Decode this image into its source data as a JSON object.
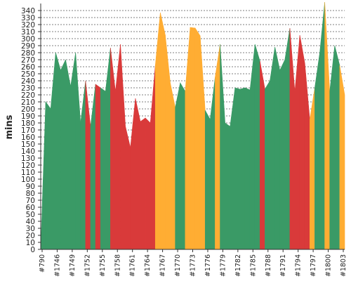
{
  "chart_data": {
    "type": "area",
    "title": "",
    "xlabel": "",
    "ylabel": "mins",
    "ylim": [
      0,
      350
    ],
    "yticks": [
      0,
      10,
      20,
      30,
      40,
      50,
      60,
      70,
      80,
      90,
      100,
      110,
      120,
      130,
      140,
      150,
      160,
      170,
      180,
      190,
      200,
      210,
      220,
      230,
      240,
      250,
      260,
      270,
      280,
      290,
      300,
      310,
      320,
      330,
      340
    ],
    "grid": "horizontal-dashed",
    "legend": "none",
    "x_tick_labels": [
      "#790",
      "#1746",
      "#1749",
      "#1752",
      "#1755",
      "#1758",
      "#1761",
      "#1764",
      "#1767",
      "#1770",
      "#1773",
      "#1776",
      "#1779",
      "#1782",
      "#1785",
      "#1788",
      "#1791",
      "#1794",
      "#1797",
      "#1800",
      "#1803"
    ],
    "status_colors": {
      "green": "#3a9a66",
      "red": "#d93a3a",
      "orange": "#ffad33"
    },
    "values": [
      0,
      210,
      200,
      280,
      255,
      270,
      232,
      280,
      180,
      240,
      175,
      235,
      230,
      225,
      287,
      225,
      292,
      175,
      145,
      215,
      182,
      187,
      180,
      262,
      337,
      305,
      237,
      202,
      237,
      225,
      316,
      315,
      304,
      198,
      185,
      245,
      292,
      180,
      175,
      230,
      228,
      230,
      227,
      292,
      268,
      228,
      240,
      288,
      255,
      270,
      315,
      225,
      305,
      265,
      185,
      230,
      280,
      352,
      225,
      290,
      262,
      220
    ],
    "segment_colors": [
      "green",
      "green",
      "green",
      "green",
      "green",
      "green",
      "green",
      "green",
      "green",
      "red",
      "green",
      "red",
      "green",
      "green",
      "red",
      "red",
      "red",
      "red",
      "red",
      "red",
      "red",
      "red",
      "red",
      "orange",
      "orange",
      "orange",
      "orange",
      "green",
      "green",
      "orange",
      "orange",
      "orange",
      "orange",
      "green",
      "green",
      "orange",
      "green",
      "green",
      "green",
      "green",
      "green",
      "green",
      "green",
      "green",
      "red",
      "green",
      "green",
      "green",
      "green",
      "green",
      "red",
      "red",
      "red",
      "red",
      "orange",
      "green",
      "green",
      "orange",
      "green",
      "green",
      "orange",
      "green"
    ]
  }
}
